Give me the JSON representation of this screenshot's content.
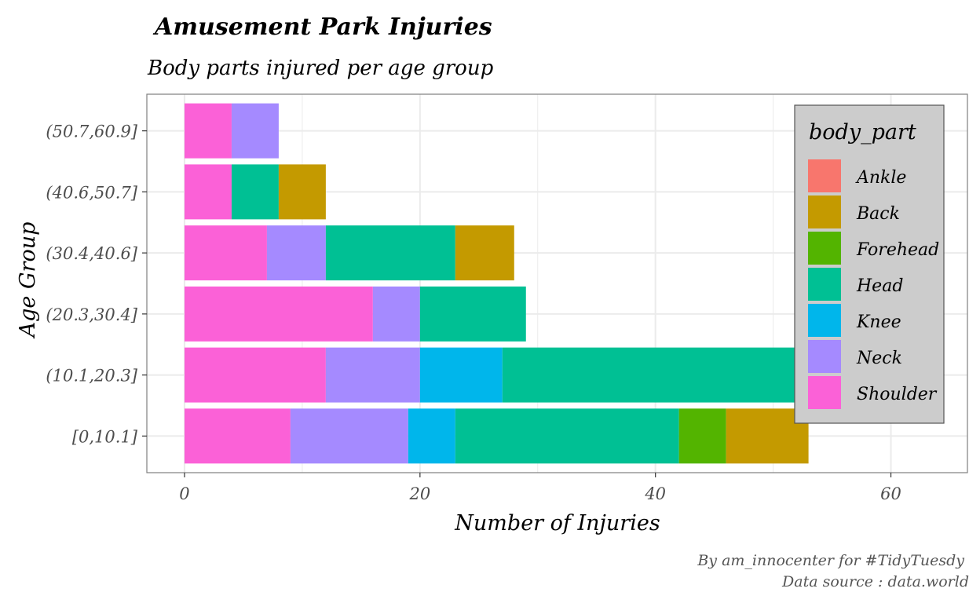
{
  "chart_data": {
    "type": "bar",
    "orientation": "horizontal",
    "stacked": true,
    "title": "Amusement Park Injuries",
    "subtitle": "Body parts injured per age group",
    "xlabel": "Number of Injuries",
    "ylabel": "Age Group",
    "xlim": [
      -3.2,
      66.5
    ],
    "xticks": [
      0,
      20,
      40,
      60
    ],
    "grid": true,
    "legend": {
      "title": "body_part",
      "placement": "top-right (inside plot)"
    },
    "categories": [
      "[0,10.1]",
      "(10.1,20.3]",
      "(20.3,30.4]",
      "(30.4,40.6]",
      "(40.6,50.7]",
      "(50.7,60.9]"
    ],
    "series": [
      {
        "name": "Shoulder",
        "color": "#FB61D7",
        "values": [
          9,
          12,
          16,
          7,
          4,
          4
        ]
      },
      {
        "name": "Neck",
        "color": "#A58AFF",
        "values": [
          10,
          8,
          4,
          5,
          0,
          4
        ]
      },
      {
        "name": "Knee",
        "color": "#00B6EB",
        "values": [
          4,
          7,
          0,
          0,
          0,
          0
        ]
      },
      {
        "name": "Head",
        "color": "#00C094",
        "values": [
          19,
          27,
          9,
          11,
          4,
          0
        ]
      },
      {
        "name": "Forehead",
        "color": "#53B400",
        "values": [
          4,
          0,
          0,
          0,
          0,
          0
        ]
      },
      {
        "name": "Back",
        "color": "#C49A00",
        "values": [
          7,
          0,
          0,
          5,
          4,
          0
        ]
      },
      {
        "name": "Ankle",
        "color": "#F8766D",
        "values": [
          0,
          0,
          0,
          0,
          0,
          0
        ]
      }
    ],
    "legend_order": [
      "Ankle",
      "Back",
      "Forehead",
      "Head",
      "Knee",
      "Neck",
      "Shoulder"
    ],
    "caption": [
      "By am_innocenter for #TidyTuesdy",
      "Data source : data.world"
    ]
  }
}
